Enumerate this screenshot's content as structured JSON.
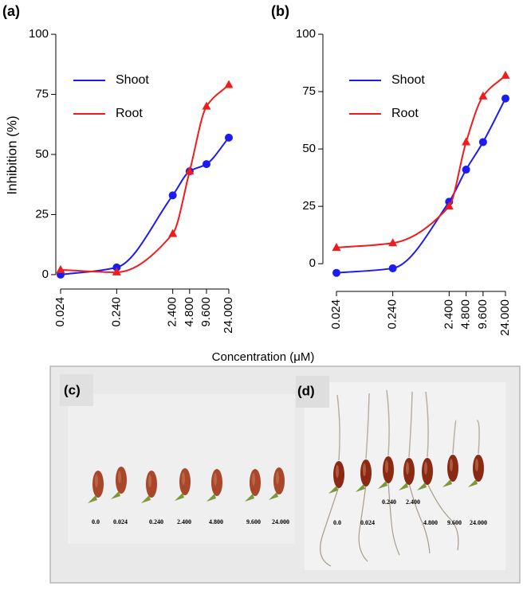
{
  "chart_data": [
    {
      "type": "line",
      "label": "(a)",
      "ylabel": "Inhibition (%)",
      "log_x": true,
      "x": [
        0.024,
        0.24,
        2.4,
        4.8,
        9.6,
        24
      ],
      "series": [
        {
          "name": "Shoot",
          "color": "#1c1cf0",
          "marker": "circle",
          "values": [
            0,
            3,
            33,
            43,
            46,
            57
          ]
        },
        {
          "name": "Root",
          "color": "#f01c1c",
          "marker": "triangle",
          "values": [
            2,
            1,
            17,
            43,
            70,
            79
          ]
        }
      ],
      "xlim": [
        0.024,
        24
      ],
      "xticks": [
        0.024,
        {
          "value": 0.24,
          "label": "0.240"
        },
        {
          "value": 2.4,
          "label": "2.400"
        },
        {
          "value": 4.8,
          "label": "4.800"
        },
        {
          "value": 9.6,
          "label": "9.600"
        },
        {
          "value": 24,
          "label": "24.000"
        }
      ],
      "ylim": [
        -4,
        104
      ],
      "yticks": [
        0,
        25,
        50,
        75,
        100
      ],
      "legend": "upper left"
    },
    {
      "type": "line",
      "label": "(b)",
      "log_x": true,
      "x": [
        0.024,
        0.24,
        2.4,
        4.8,
        9.6,
        24
      ],
      "series": [
        {
          "name": "Shoot",
          "color": "#1c1cf0",
          "marker": "circle",
          "values": [
            -4,
            -2,
            27,
            41,
            53,
            72
          ]
        },
        {
          "name": "Root",
          "color": "#f01c1c",
          "marker": "triangle",
          "values": [
            7,
            9,
            25,
            53,
            73,
            82
          ]
        }
      ],
      "xlim": [
        0.024,
        24
      ],
      "xticks": [
        0.024,
        {
          "value": 0.24,
          "label": "0.240"
        },
        {
          "value": 2.4,
          "label": "2.400"
        },
        {
          "value": 4.8,
          "label": "4.800"
        },
        {
          "value": 9.6,
          "label": "9.600"
        },
        {
          "value": 24,
          "label": "24.000"
        }
      ],
      "ylim": [
        -10,
        104
      ],
      "yticks": [
        0,
        25,
        50,
        75,
        100
      ],
      "legend": "upper left"
    }
  ],
  "xlabel": "Concentration (μM)",
  "photos": [
    {
      "label": "(c)",
      "captions": [
        "0.0",
        "0.024",
        "0.240",
        "2.400",
        "4.800",
        "9.600",
        "24.000"
      ]
    },
    {
      "label": "(d)",
      "captions": [
        "0.0",
        "0.024",
        "0.240",
        "2.400",
        "4.800",
        "9.600",
        "24.000"
      ]
    }
  ]
}
